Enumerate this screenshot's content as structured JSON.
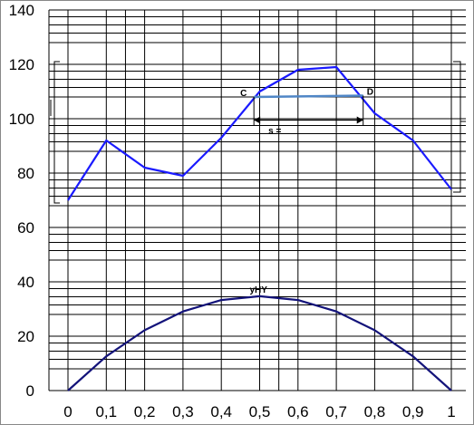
{
  "chart_data": {
    "type": "line",
    "xlim": [
      0,
      1
    ],
    "ylim": [
      0,
      140
    ],
    "x_ticks": [
      {
        "value": 0,
        "label": "0"
      },
      {
        "value": 0.1,
        "label": "0,1"
      },
      {
        "value": 0.2,
        "label": "0,2"
      },
      {
        "value": 0.3,
        "label": "0,3"
      },
      {
        "value": 0.4,
        "label": "0,4"
      },
      {
        "value": 0.5,
        "label": "0,5"
      },
      {
        "value": 0.6,
        "label": "0,6"
      },
      {
        "value": 0.7,
        "label": "0,7"
      },
      {
        "value": 0.8,
        "label": "0,8"
      },
      {
        "value": 0.9,
        "label": "0,9"
      },
      {
        "value": 1,
        "label": "1"
      }
    ],
    "y_ticks": [
      {
        "value": 0,
        "label": "0"
      },
      {
        "value": 20,
        "label": "20"
      },
      {
        "value": 40,
        "label": "40"
      },
      {
        "value": 60,
        "label": "60"
      },
      {
        "value": 80,
        "label": "80"
      },
      {
        "value": 100,
        "label": "100"
      },
      {
        "value": 120,
        "label": "120"
      },
      {
        "value": 140,
        "label": "140"
      }
    ],
    "grid": true,
    "series": [
      {
        "color": "#1a1aff",
        "x": [
          0,
          0.1,
          0.2,
          0.3,
          0.4,
          0.5,
          0.6,
          0.7,
          0.8,
          0.9,
          1
        ],
        "y": [
          70,
          92,
          82,
          79,
          93,
          110,
          118,
          119,
          102,
          92,
          74
        ]
      },
      {
        "color": "#13137a",
        "x": [
          0,
          0.1,
          0.2,
          0.3,
          0.4,
          0.5,
          0.6,
          0.7,
          0.8,
          0.9,
          1
        ],
        "y": [
          0,
          12.6,
          22.2,
          29.1,
          33.3,
          34.7,
          33.3,
          29.1,
          22.2,
          12.6,
          0
        ]
      }
    ],
    "annotations": {
      "segment_cd": {
        "color": "#4f86c6",
        "x1": 0.485,
        "y1": 108,
        "x2": 0.77,
        "y2": 108.5,
        "label_start": "C",
        "label_end": "D"
      },
      "dimension_arrow": {
        "x1": 0.485,
        "x2": 0.77,
        "y": 99.5,
        "label": "s ="
      },
      "peak_label": {
        "text": "yHY",
        "x": 0.5,
        "y": 34.7
      }
    }
  }
}
